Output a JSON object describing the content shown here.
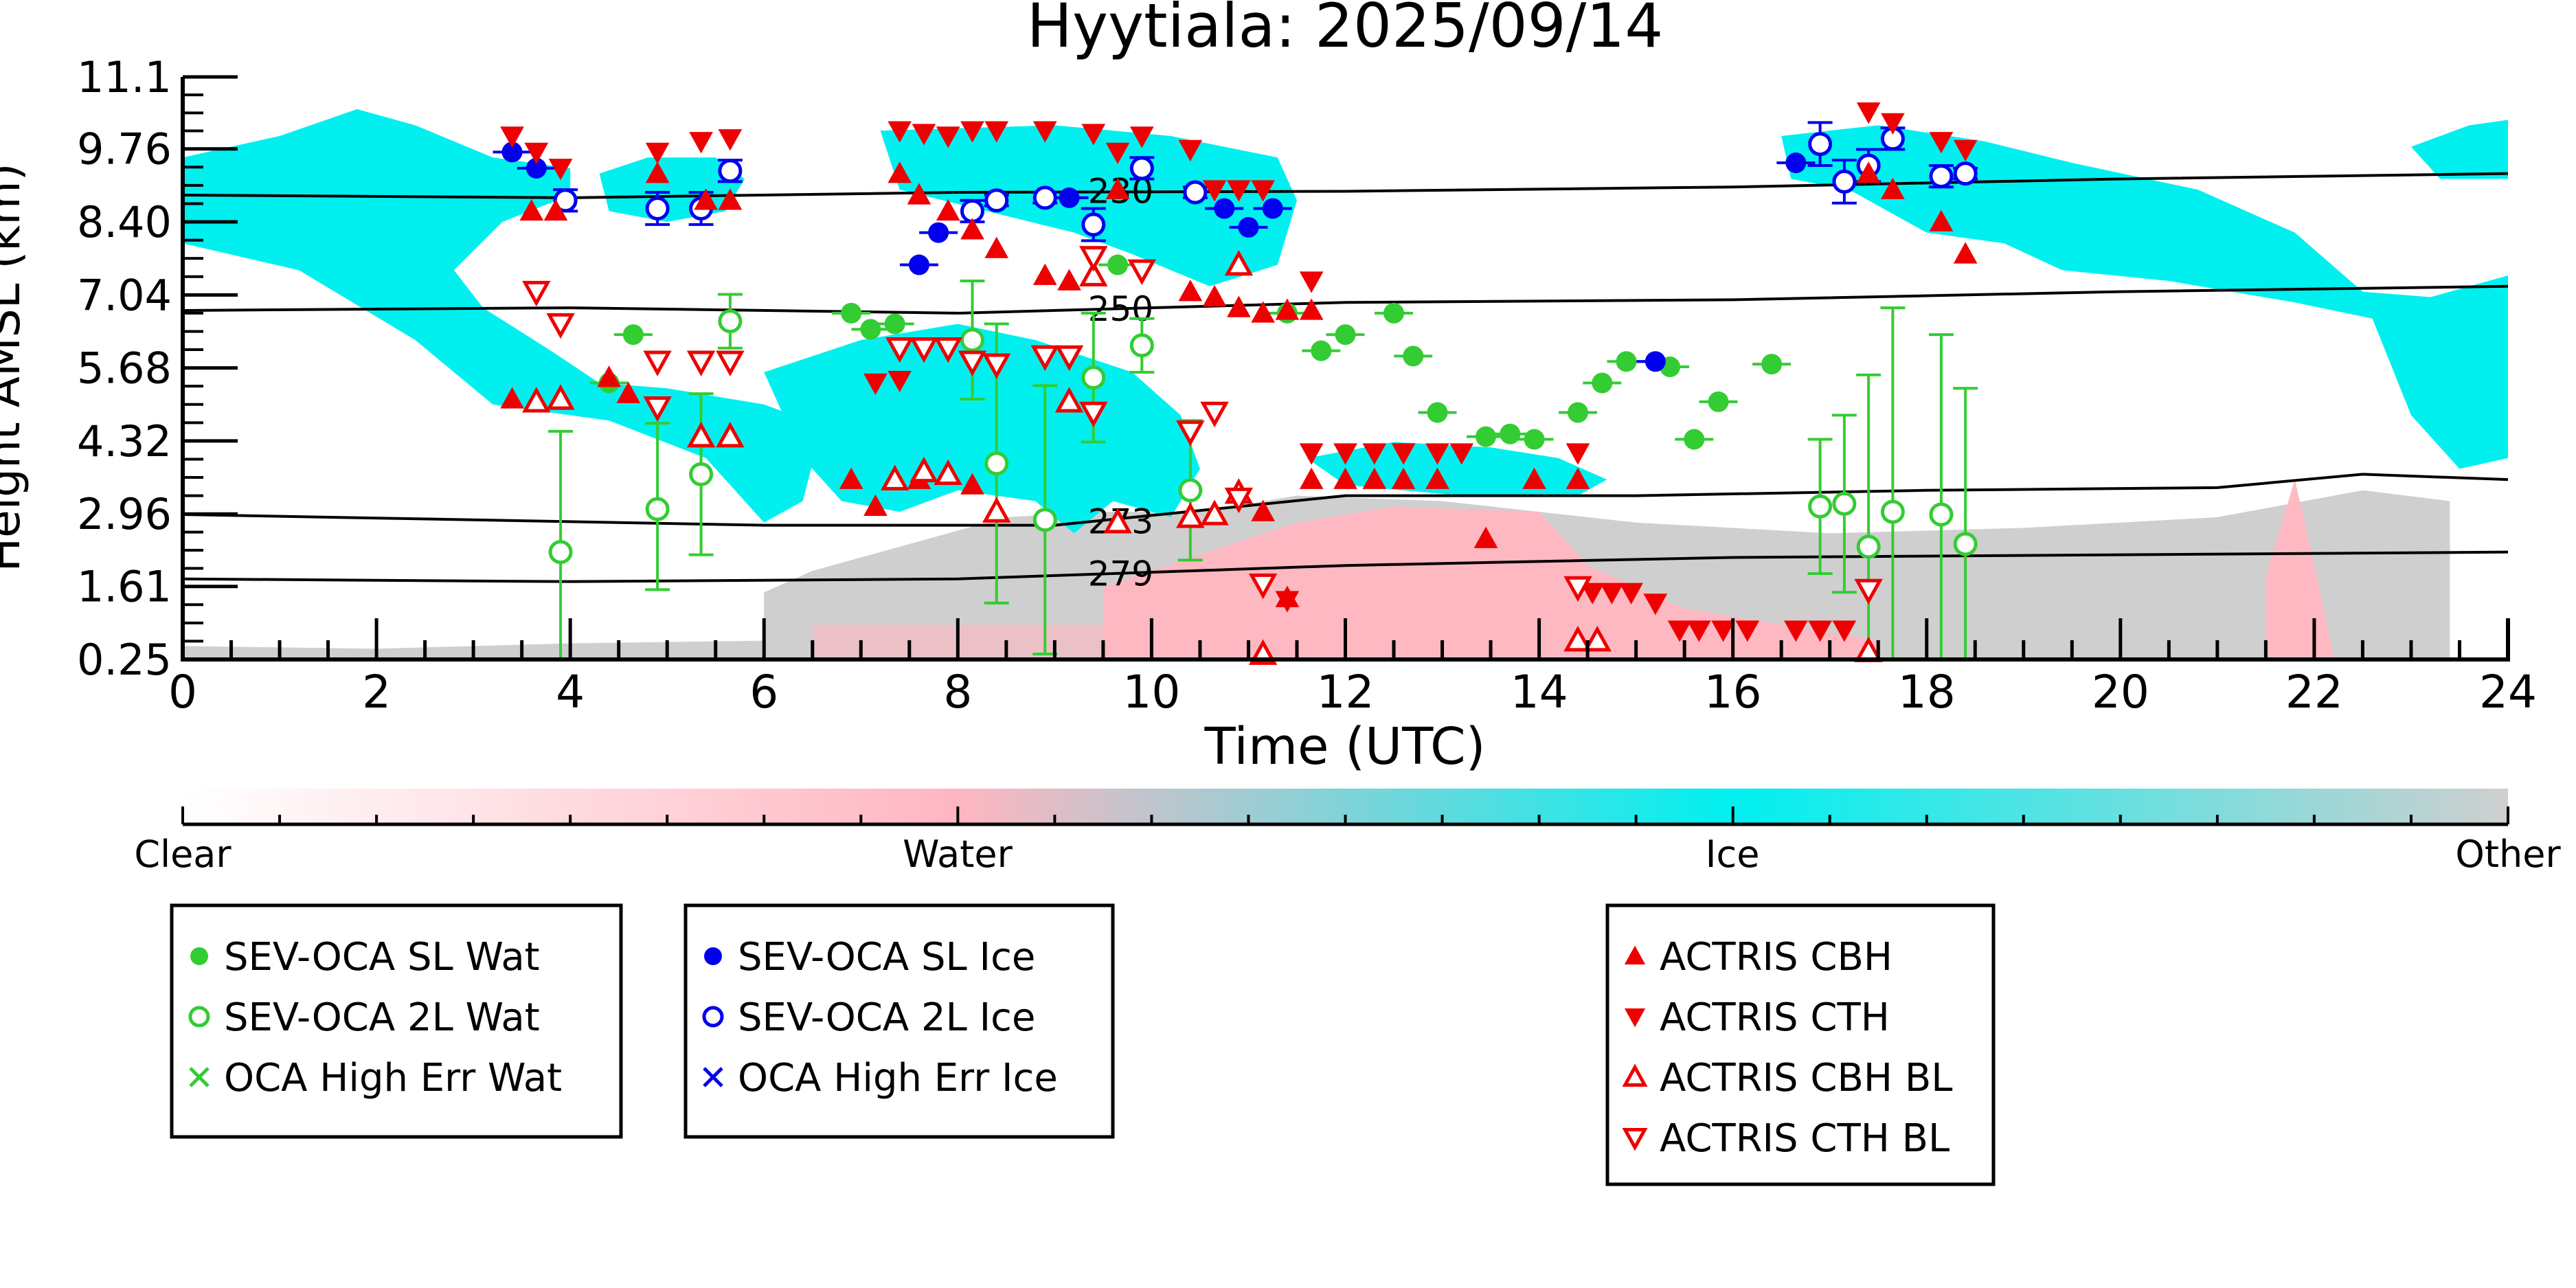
{
  "chart_data": {
    "type": "scatter",
    "title": "Hyytiala: 2025/09/14",
    "xlabel": "Time (UTC)",
    "ylabel": "Height AMSL (km)",
    "xlim": [
      0,
      24
    ],
    "ylim": [
      0.25,
      11.1
    ],
    "x_ticks": [
      0,
      2,
      4,
      6,
      8,
      10,
      12,
      14,
      16,
      18,
      20,
      22,
      24
    ],
    "y_ticks": [
      0.25,
      1.61,
      2.96,
      4.32,
      5.68,
      7.04,
      8.4,
      9.76,
      11.1
    ],
    "y_tick_labels": [
      "0.25",
      "1.61",
      "2.96",
      "4.32",
      "5.68",
      "7.04",
      "8.40",
      "9.76",
      "11.1"
    ],
    "grid": false,
    "colorbar": {
      "labels": [
        "Clear",
        "Water",
        "Ice",
        "Other"
      ],
      "colors": {
        "clear": "#ffffff",
        "water": "#ffb6c1",
        "ice": "#00f0f0",
        "other": "#cfcfcf"
      }
    },
    "isotherms": [
      {
        "label": "230",
        "x": [
          0,
          4,
          8,
          12,
          16,
          20,
          24
        ],
        "y": [
          8.9,
          8.85,
          8.95,
          8.97,
          9.05,
          9.2,
          9.3
        ]
      },
      {
        "label": "250",
        "x": [
          0,
          4,
          8,
          12,
          16,
          20,
          24
        ],
        "y": [
          6.75,
          6.8,
          6.7,
          6.9,
          6.95,
          7.1,
          7.2
        ]
      },
      {
        "label": "273",
        "x": [
          0,
          3,
          6,
          9,
          12,
          15,
          18,
          21,
          22.5,
          24
        ],
        "y": [
          2.95,
          2.85,
          2.75,
          2.75,
          3.3,
          3.3,
          3.4,
          3.45,
          3.7,
          3.6
        ]
      },
      {
        "label": "279",
        "x": [
          0,
          4,
          8,
          12,
          16,
          20,
          24
        ],
        "y": [
          1.75,
          1.7,
          1.75,
          2.0,
          2.15,
          2.2,
          2.25
        ]
      }
    ],
    "series": [
      {
        "name": "SEV-OCA SL Wat",
        "color": "#33cc33",
        "marker": "filled-circle",
        "points": [
          [
            4.4,
            5.4
          ],
          [
            4.65,
            6.3
          ],
          [
            6.9,
            6.7
          ],
          [
            7.1,
            6.4
          ],
          [
            7.35,
            6.5
          ],
          [
            9.65,
            7.6
          ],
          [
            11.4,
            6.7
          ],
          [
            11.75,
            6.0
          ],
          [
            12.0,
            6.3
          ],
          [
            12.5,
            6.7
          ],
          [
            12.7,
            5.9
          ],
          [
            12.95,
            4.85
          ],
          [
            13.45,
            4.4
          ],
          [
            13.7,
            4.45
          ],
          [
            13.95,
            4.35
          ],
          [
            14.4,
            4.85
          ],
          [
            14.65,
            5.4
          ],
          [
            14.9,
            5.8
          ],
          [
            15.35,
            5.7
          ],
          [
            15.6,
            4.35
          ],
          [
            15.85,
            5.05
          ],
          [
            16.4,
            5.75
          ]
        ]
      },
      {
        "name": "SEV-OCA 2L Wat",
        "color": "#33cc33",
        "marker": "open-circle",
        "points": [
          [
            3.9,
            2.25
          ],
          [
            4.9,
            3.05
          ],
          [
            5.35,
            3.7
          ],
          [
            5.65,
            6.55
          ],
          [
            8.15,
            6.2
          ],
          [
            8.4,
            3.9
          ],
          [
            8.9,
            2.85
          ],
          [
            9.4,
            5.5
          ],
          [
            9.9,
            6.1
          ],
          [
            10.4,
            3.4
          ],
          [
            16.9,
            3.1
          ],
          [
            17.15,
            3.15
          ],
          [
            17.4,
            2.35
          ],
          [
            17.65,
            3.0
          ],
          [
            18.15,
            2.95
          ],
          [
            18.4,
            2.4
          ]
        ],
        "errors": [
          [
            2.25,
            2.25
          ],
          [
            1.5,
            1.6
          ],
          [
            1.5,
            1.5
          ],
          [
            0.5,
            0.5
          ],
          [
            1.1,
            1.1
          ],
          [
            2.6,
            2.6
          ],
          [
            2.5,
            2.5
          ],
          [
            1.2,
            1.2
          ],
          [
            0.5,
            0.5
          ],
          [
            1.3,
            1.3
          ],
          [
            1.25,
            1.25
          ],
          [
            1.65,
            1.65
          ],
          [
            3.2,
            3.2
          ],
          [
            3.8,
            3.8
          ],
          [
            3.35,
            3.35
          ],
          [
            2.9,
            2.9
          ]
        ]
      },
      {
        "name": "OCA High Err Wat",
        "color": "#33cc33",
        "marker": "x",
        "points": []
      },
      {
        "name": "SEV-OCA SL Ice",
        "color": "#0000ee",
        "marker": "filled-circle",
        "points": [
          [
            3.4,
            9.7
          ],
          [
            3.65,
            9.4
          ],
          [
            7.6,
            7.6
          ],
          [
            7.8,
            8.2
          ],
          [
            9.15,
            8.85
          ],
          [
            10.75,
            8.65
          ],
          [
            11.0,
            8.3
          ],
          [
            11.25,
            8.65
          ],
          [
            15.2,
            5.8
          ],
          [
            16.65,
            9.5
          ]
        ]
      },
      {
        "name": "SEV-OCA 2L Ice",
        "color": "#0000ee",
        "marker": "open-circle",
        "points": [
          [
            3.95,
            8.8
          ],
          [
            4.9,
            8.65
          ],
          [
            5.35,
            8.65
          ],
          [
            5.65,
            9.35
          ],
          [
            8.15,
            8.6
          ],
          [
            8.4,
            8.8
          ],
          [
            8.9,
            8.85
          ],
          [
            9.4,
            8.35
          ],
          [
            9.9,
            9.4
          ],
          [
            10.45,
            8.95
          ],
          [
            16.9,
            9.85
          ],
          [
            17.15,
            9.15
          ],
          [
            17.4,
            9.45
          ],
          [
            17.65,
            9.95
          ],
          [
            18.15,
            9.25
          ],
          [
            18.4,
            9.3
          ]
        ],
        "errors": [
          [
            0.2,
            0.2
          ],
          [
            0.3,
            0.3
          ],
          [
            0.3,
            0.3
          ],
          [
            0.2,
            0.2
          ],
          [
            0.2,
            0.2
          ],
          [
            0.1,
            0.1
          ],
          [
            0.1,
            0.1
          ],
          [
            0.3,
            0.3
          ],
          [
            0.2,
            0.2
          ],
          [
            0.1,
            0.1
          ],
          [
            0.4,
            0.4
          ],
          [
            0.4,
            0.4
          ],
          [
            0.3,
            0.3
          ],
          [
            0.2,
            0.2
          ],
          [
            0.2,
            0.2
          ],
          [
            0.1,
            0.1
          ]
        ]
      },
      {
        "name": "OCA High Err Ice",
        "color": "#0000ee",
        "marker": "x",
        "points": []
      },
      {
        "name": "ACTRIS CBH",
        "color": "#ee0000",
        "marker": "triangle-up-filled",
        "points": [
          [
            3.4,
            5.1
          ],
          [
            4.4,
            5.5
          ],
          [
            4.6,
            5.2
          ],
          [
            7.4,
            9.3
          ],
          [
            7.6,
            8.9
          ],
          [
            7.9,
            8.6
          ],
          [
            8.15,
            8.25
          ],
          [
            8.4,
            7.9
          ],
          [
            8.9,
            7.4
          ],
          [
            9.15,
            7.3
          ],
          [
            9.65,
            9.0
          ],
          [
            10.4,
            7.1
          ],
          [
            10.65,
            7.0
          ],
          [
            10.9,
            6.8
          ],
          [
            11.15,
            6.7
          ],
          [
            11.4,
            6.75
          ],
          [
            11.65,
            6.75
          ],
          [
            6.9,
            3.6
          ],
          [
            7.15,
            3.1
          ],
          [
            7.6,
            3.6
          ],
          [
            8.15,
            3.5
          ],
          [
            11.15,
            3.0
          ],
          [
            11.4,
            1.4
          ],
          [
            11.65,
            3.6
          ],
          [
            12.0,
            3.6
          ],
          [
            12.3,
            3.6
          ],
          [
            12.6,
            3.6
          ],
          [
            12.95,
            3.6
          ],
          [
            13.45,
            2.5
          ],
          [
            13.95,
            3.6
          ],
          [
            14.4,
            3.6
          ],
          [
            17.4,
            9.3
          ],
          [
            17.65,
            9.0
          ],
          [
            18.15,
            8.4
          ],
          [
            18.4,
            7.8
          ],
          [
            5.4,
            8.8
          ],
          [
            5.65,
            8.8
          ],
          [
            3.6,
            8.6
          ],
          [
            3.85,
            8.6
          ],
          [
            4.9,
            9.3
          ]
        ]
      },
      {
        "name": "ACTRIS CTH",
        "color": "#ee0000",
        "marker": "triangle-down-filled",
        "points": [
          [
            3.4,
            10.0
          ],
          [
            3.65,
            9.7
          ],
          [
            3.9,
            9.4
          ],
          [
            4.9,
            9.7
          ],
          [
            5.35,
            9.9
          ],
          [
            5.65,
            9.95
          ],
          [
            7.4,
            10.1
          ],
          [
            7.65,
            10.05
          ],
          [
            7.9,
            10.0
          ],
          [
            8.15,
            10.1
          ],
          [
            8.4,
            10.1
          ],
          [
            8.9,
            10.1
          ],
          [
            9.4,
            10.05
          ],
          [
            9.65,
            9.7
          ],
          [
            9.9,
            10.0
          ],
          [
            10.4,
            9.75
          ],
          [
            10.65,
            9.0
          ],
          [
            10.9,
            9.0
          ],
          [
            11.15,
            9.0
          ],
          [
            11.65,
            7.3
          ],
          [
            7.15,
            5.4
          ],
          [
            7.4,
            5.45
          ],
          [
            11.65,
            4.1
          ],
          [
            12.0,
            4.1
          ],
          [
            12.3,
            4.1
          ],
          [
            12.6,
            4.1
          ],
          [
            12.95,
            4.1
          ],
          [
            13.2,
            4.1
          ],
          [
            14.4,
            4.1
          ],
          [
            11.4,
            1.35
          ],
          [
            14.55,
            1.5
          ],
          [
            14.75,
            1.5
          ],
          [
            14.95,
            1.5
          ],
          [
            15.2,
            1.3
          ],
          [
            15.45,
            0.8
          ],
          [
            15.65,
            0.8
          ],
          [
            15.9,
            0.8
          ],
          [
            16.15,
            0.8
          ],
          [
            16.65,
            0.8
          ],
          [
            16.9,
            0.8
          ],
          [
            17.15,
            0.8
          ],
          [
            17.4,
            10.45
          ],
          [
            17.65,
            10.25
          ],
          [
            18.15,
            9.9
          ],
          [
            18.4,
            9.75
          ]
        ]
      },
      {
        "name": "ACTRIS CBH BL",
        "color": "#ee0000",
        "marker": "triangle-up-open",
        "points": [
          [
            3.65,
            5.05
          ],
          [
            3.9,
            5.1
          ],
          [
            5.35,
            4.4
          ],
          [
            5.65,
            4.4
          ],
          [
            7.35,
            3.6
          ],
          [
            7.65,
            3.75
          ],
          [
            7.9,
            3.7
          ],
          [
            8.4,
            3.0
          ],
          [
            9.15,
            5.05
          ],
          [
            9.65,
            2.8
          ],
          [
            10.4,
            2.9
          ],
          [
            10.65,
            2.95
          ],
          [
            10.9,
            3.35
          ],
          [
            11.15,
            0.35
          ],
          [
            14.4,
            0.6
          ],
          [
            14.6,
            0.6
          ],
          [
            17.4,
            0.4
          ],
          [
            9.4,
            7.4
          ],
          [
            10.9,
            7.6
          ]
        ]
      },
      {
        "name": "ACTRIS CTH BL",
        "color": "#ee0000",
        "marker": "triangle-down-open",
        "points": [
          [
            3.65,
            7.1
          ],
          [
            3.9,
            6.5
          ],
          [
            4.9,
            5.8
          ],
          [
            5.35,
            5.8
          ],
          [
            5.65,
            5.8
          ],
          [
            7.4,
            6.05
          ],
          [
            7.65,
            6.05
          ],
          [
            7.9,
            6.05
          ],
          [
            8.15,
            5.8
          ],
          [
            8.4,
            5.75
          ],
          [
            8.9,
            5.9
          ],
          [
            9.15,
            5.9
          ],
          [
            9.4,
            7.75
          ],
          [
            9.9,
            7.5
          ],
          [
            10.4,
            4.5
          ],
          [
            10.65,
            4.85
          ],
          [
            10.9,
            3.25
          ],
          [
            11.15,
            1.65
          ],
          [
            14.4,
            1.6
          ],
          [
            17.4,
            1.55
          ],
          [
            4.9,
            4.95
          ],
          [
            9.4,
            4.85
          ]
        ]
      }
    ],
    "legend": {
      "groups": [
        [
          "SEV-OCA SL Wat",
          "SEV-OCA 2L Wat",
          "OCA High Err Wat"
        ],
        [
          "SEV-OCA SL Ice",
          "SEV-OCA 2L Ice",
          "OCA High Err Ice"
        ],
        [
          "ACTRIS CBH",
          "ACTRIS CTH",
          "ACTRIS CBH BL",
          "ACTRIS CTH BL"
        ]
      ],
      "placement": "bottom"
    }
  }
}
